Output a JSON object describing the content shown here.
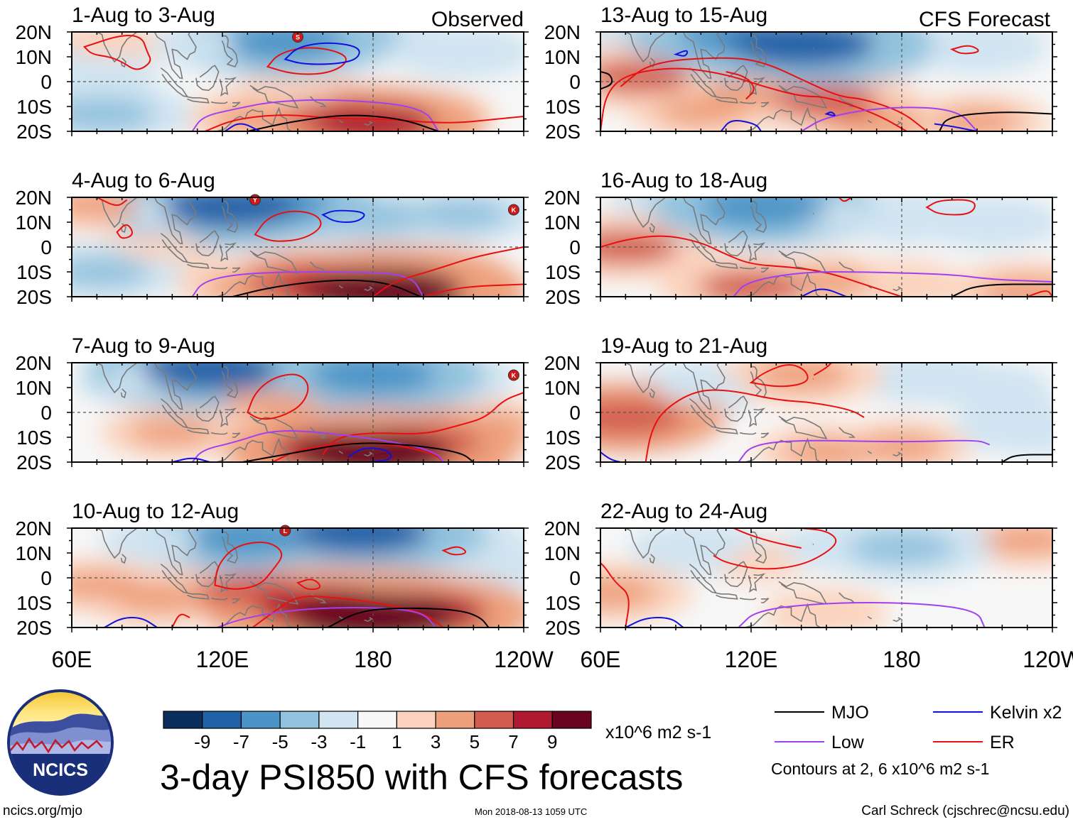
{
  "header": {
    "left_tag": "Observed",
    "right_tag": "CFS Forecast"
  },
  "chart_data": {
    "type": "heatmap",
    "title": "3-day PSI850 with CFS forecasts",
    "variable": "850-hPa streamfunction anomaly",
    "units": "x10^6 m2 s-1",
    "x_axis": {
      "ticks": [
        "60E",
        "120E",
        "180",
        "120W"
      ],
      "range": [
        60,
        240
      ]
    },
    "y_axis": {
      "ticks": [
        "20N",
        "10N",
        "0",
        "10S",
        "20S"
      ],
      "range": [
        -20,
        20
      ]
    },
    "colorbar": {
      "levels": [
        -9,
        -7,
        -5,
        -3,
        -1,
        1,
        3,
        5,
        7,
        9
      ],
      "level_labels": [
        "-9",
        "-7",
        "-5",
        "-3",
        "-1",
        "1",
        "3",
        "5",
        "7",
        "9"
      ],
      "colors": [
        "#0a2f5e",
        "#2062a8",
        "#4b94c7",
        "#93c2de",
        "#d0e4f1",
        "#f7f7f7",
        "#fbd3bd",
        "#eea07d",
        "#d35e50",
        "#b0192f",
        "#6a0320"
      ]
    },
    "contour_levels_note": "Contours at 2, 6 x10^6 m2 s-1",
    "legend": [
      {
        "name": "MJO",
        "color": "#000000"
      },
      {
        "name": "Kelvin x2",
        "color": "#1010e0"
      },
      {
        "name": "Low",
        "color": "#a040f0"
      },
      {
        "name": "ER",
        "color": "#e81010"
      }
    ],
    "panels": [
      {
        "title": "1-Aug to 3-Aug",
        "source": "observed",
        "column": 0,
        "row": 0,
        "storms": [
          {
            "label": "S",
            "lon": 150,
            "lat": 18
          }
        ],
        "blobs": [
          {
            "lon": 145,
            "lat": 16,
            "value": -6
          },
          {
            "lon": 170,
            "lat": 18,
            "value": -5
          },
          {
            "lon": 72,
            "lat": -13,
            "value": -5
          },
          {
            "lon": 65,
            "lat": 3,
            "value": -3
          },
          {
            "lon": 120,
            "lat": 15,
            "value": -3
          },
          {
            "lon": 215,
            "lat": 12,
            "value": -3
          },
          {
            "lon": 180,
            "lat": -17,
            "value": 7
          },
          {
            "lon": 165,
            "lat": -14,
            "value": 5
          },
          {
            "lon": 135,
            "lat": -15,
            "value": 4
          },
          {
            "lon": 200,
            "lat": -14,
            "value": 3
          },
          {
            "lon": 150,
            "lat": -5,
            "value": 2
          },
          {
            "lon": 75,
            "lat": 15,
            "value": 2
          }
        ]
      },
      {
        "title": "4-Aug to 6-Aug",
        "source": "observed",
        "column": 0,
        "row": 1,
        "storms": [
          {
            "label": "Y",
            "lon": 133,
            "lat": 19
          },
          {
            "label": "K",
            "lon": 236,
            "lat": 15
          }
        ],
        "blobs": [
          {
            "lon": 123,
            "lat": 16,
            "value": -8
          },
          {
            "lon": 140,
            "lat": 17,
            "value": -6
          },
          {
            "lon": 180,
            "lat": 12,
            "value": -5
          },
          {
            "lon": 215,
            "lat": 13,
            "value": -4
          },
          {
            "lon": 72,
            "lat": -10,
            "value": -4
          },
          {
            "lon": 100,
            "lat": 14,
            "value": -3
          },
          {
            "lon": 185,
            "lat": -18,
            "value": 10
          },
          {
            "lon": 170,
            "lat": -17,
            "value": 8
          },
          {
            "lon": 150,
            "lat": -14,
            "value": 5
          },
          {
            "lon": 130,
            "lat": -16,
            "value": 3
          },
          {
            "lon": 205,
            "lat": -10,
            "value": 3
          },
          {
            "lon": 95,
            "lat": 0,
            "value": 2
          },
          {
            "lon": 70,
            "lat": 17,
            "value": 3
          }
        ]
      },
      {
        "title": "7-Aug to 9-Aug",
        "source": "observed",
        "column": 0,
        "row": 2,
        "storms": [
          {
            "label": "K",
            "lon": 236,
            "lat": 15
          }
        ],
        "blobs": [
          {
            "lon": 115,
            "lat": 17,
            "value": -8
          },
          {
            "lon": 130,
            "lat": 15,
            "value": -5
          },
          {
            "lon": 180,
            "lat": 15,
            "value": -7
          },
          {
            "lon": 160,
            "lat": 13,
            "value": -5
          },
          {
            "lon": 205,
            "lat": 14,
            "value": -4
          },
          {
            "lon": 90,
            "lat": 13,
            "value": -3
          },
          {
            "lon": 180,
            "lat": -17,
            "value": 10
          },
          {
            "lon": 165,
            "lat": -15,
            "value": 7
          },
          {
            "lon": 200,
            "lat": -12,
            "value": 6
          },
          {
            "lon": 140,
            "lat": 5,
            "value": 4
          },
          {
            "lon": 100,
            "lat": -8,
            "value": 3
          },
          {
            "lon": 225,
            "lat": -5,
            "value": 3
          }
        ]
      },
      {
        "title": "10-Aug to 12-Aug",
        "source": "observed",
        "column": 0,
        "row": 3,
        "storms": [
          {
            "label": "L",
            "lon": 145,
            "lat": 19
          }
        ],
        "blobs": [
          {
            "lon": 175,
            "lat": 18,
            "value": -8
          },
          {
            "lon": 130,
            "lat": 16,
            "value": -6
          },
          {
            "lon": 205,
            "lat": 15,
            "value": -5
          },
          {
            "lon": 100,
            "lat": 15,
            "value": -3
          },
          {
            "lon": 230,
            "lat": 5,
            "value": -2
          },
          {
            "lon": 180,
            "lat": -16,
            "value": 11
          },
          {
            "lon": 160,
            "lat": -12,
            "value": 8
          },
          {
            "lon": 200,
            "lat": -14,
            "value": 7
          },
          {
            "lon": 130,
            "lat": -5,
            "value": 5
          },
          {
            "lon": 95,
            "lat": -8,
            "value": 4
          },
          {
            "lon": 70,
            "lat": -3,
            "value": 3
          }
        ]
      },
      {
        "title": "13-Aug to 15-Aug",
        "source": "forecast",
        "column": 1,
        "row": 0,
        "storms": [],
        "blobs": [
          {
            "lon": 140,
            "lat": 15,
            "value": -9
          },
          {
            "lon": 115,
            "lat": 18,
            "value": -6
          },
          {
            "lon": 90,
            "lat": 17,
            "value": -5
          },
          {
            "lon": 170,
            "lat": 14,
            "value": -4
          },
          {
            "lon": 210,
            "lat": 14,
            "value": -3
          },
          {
            "lon": 75,
            "lat": 2,
            "value": 5
          },
          {
            "lon": 120,
            "lat": -5,
            "value": 4
          },
          {
            "lon": 150,
            "lat": -8,
            "value": 5
          },
          {
            "lon": 100,
            "lat": -12,
            "value": 3
          },
          {
            "lon": 170,
            "lat": -16,
            "value": 4
          },
          {
            "lon": 210,
            "lat": -16,
            "value": 3
          }
        ]
      },
      {
        "title": "16-Aug to 18-Aug",
        "source": "forecast",
        "column": 1,
        "row": 1,
        "storms": [],
        "blobs": [
          {
            "lon": 125,
            "lat": 16,
            "value": -7
          },
          {
            "lon": 100,
            "lat": 18,
            "value": -5
          },
          {
            "lon": 180,
            "lat": 12,
            "value": -3
          },
          {
            "lon": 215,
            "lat": 10,
            "value": -3
          },
          {
            "lon": 150,
            "lat": 13,
            "value": -3
          },
          {
            "lon": 70,
            "lat": 0,
            "value": 5
          },
          {
            "lon": 120,
            "lat": -16,
            "value": 5
          },
          {
            "lon": 150,
            "lat": -14,
            "value": 3
          },
          {
            "lon": 180,
            "lat": -15,
            "value": 2
          },
          {
            "lon": 230,
            "lat": -18,
            "value": 4
          }
        ]
      },
      {
        "title": "19-Aug to 21-Aug",
        "source": "forecast",
        "column": 1,
        "row": 2,
        "storms": [],
        "blobs": [
          {
            "lon": 70,
            "lat": -2,
            "value": 6
          },
          {
            "lon": 140,
            "lat": 15,
            "value": 4
          },
          {
            "lon": 150,
            "lat": -16,
            "value": 3
          },
          {
            "lon": 180,
            "lat": -14,
            "value": 3
          },
          {
            "lon": 100,
            "lat": 10,
            "value": -3
          },
          {
            "lon": 230,
            "lat": -6,
            "value": -3
          },
          {
            "lon": 190,
            "lat": 14,
            "value": -3
          },
          {
            "lon": 215,
            "lat": 10,
            "value": -2
          }
        ]
      },
      {
        "title": "22-Aug to 24-Aug",
        "source": "forecast",
        "column": 1,
        "row": 3,
        "storms": [],
        "blobs": [
          {
            "lon": 180,
            "lat": 12,
            "value": -5
          },
          {
            "lon": 100,
            "lat": 12,
            "value": -3
          },
          {
            "lon": 160,
            "lat": 13,
            "value": -3
          },
          {
            "lon": 215,
            "lat": 15,
            "value": -2
          },
          {
            "lon": 64,
            "lat": -6,
            "value": 4
          },
          {
            "lon": 120,
            "lat": 8,
            "value": 2
          },
          {
            "lon": 150,
            "lat": -14,
            "value": 2
          },
          {
            "lon": 230,
            "lat": 15,
            "value": 3
          }
        ]
      }
    ]
  },
  "branding": {
    "logo_text": "NCICS",
    "site": "ncics.org/mjo",
    "timestamp": "Mon 2018-08-13 1059 UTC",
    "author": "Carl Schreck (cjschrec@ncsu.edu)"
  }
}
